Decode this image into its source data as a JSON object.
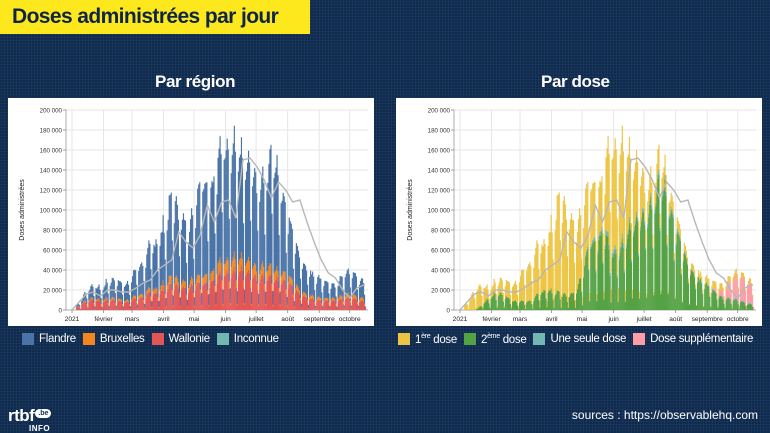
{
  "title": "Doses administrées par jour",
  "footer": {
    "logo_text": "rtbf",
    "logo_badge": ".be",
    "logo_sub": "INFO",
    "sources": "sources : https://observablehq.com"
  },
  "colors": {
    "background": "#102a4c",
    "banner": "#fde81e",
    "flandre": "#4a74a8",
    "bruxelles": "#f5861f",
    "wallonie": "#e45656",
    "inconnue": "#72b7b2",
    "dose1": "#eec543",
    "dose2": "#55a245",
    "une_seule": "#72b7b2",
    "supplementaire": "#ff9da6",
    "avg_line": "#b7b7b7"
  },
  "chart_data": [
    {
      "type": "bar",
      "stacked": true,
      "title": "Par région",
      "xlabel": "",
      "ylabel": "Doses administrées",
      "ylim": [
        0,
        200000
      ],
      "yticks": [
        0,
        20000,
        40000,
        60000,
        80000,
        100000,
        120000,
        140000,
        160000,
        180000,
        200000
      ],
      "ytick_labels": [
        "0",
        "20 000",
        "40 000",
        "60 000",
        "80 000",
        "100 000",
        "120 000",
        "140 000",
        "160 000",
        "180 000",
        "200 000"
      ],
      "x_start": "2021-01-01",
      "x_days": 289,
      "xtick_labels": [
        "2021",
        "février",
        "mars",
        "avril",
        "mai",
        "juin",
        "juillet",
        "août",
        "septembre",
        "octobre"
      ],
      "xtick_days": [
        0,
        31,
        59,
        90,
        120,
        151,
        181,
        212,
        243,
        273
      ],
      "grid": true,
      "legend_position": "bottom",
      "series": [
        {
          "name": "Wallonie",
          "color_key": "wallonie"
        },
        {
          "name": "Bruxelles",
          "color_key": "bruxelles"
        },
        {
          "name": "Flandre",
          "color_key": "flandre"
        },
        {
          "name": "Inconnue",
          "color_key": "inconnue"
        }
      ],
      "legend": [
        "Flandre",
        "Bruxelles",
        "Wallonie",
        "Inconnue"
      ],
      "envelope_weekly_peak_total": [
        0,
        9000,
        23000,
        30000,
        24000,
        34000,
        36000,
        31000,
        32000,
        50000,
        55000,
        76000,
        80000,
        102000,
        135000,
        112000,
        98000,
        107000,
        162000,
        145000,
        152000,
        197000,
        195000,
        184000,
        172000,
        165000,
        145000,
        150000,
        185000,
        160000,
        118000,
        86000,
        62000,
        48000,
        40000,
        36000,
        31000,
        28000,
        42000,
        44000,
        40000,
        30000
      ],
      "envelope_weekly_share_wallonie": [
        0.6,
        0.55,
        0.45,
        0.42,
        0.4,
        0.35,
        0.33,
        0.3,
        0.3,
        0.28,
        0.27,
        0.26,
        0.25,
        0.24,
        0.22,
        0.24,
        0.25,
        0.26,
        0.2,
        0.22,
        0.23,
        0.22,
        0.23,
        0.24,
        0.26,
        0.25,
        0.25,
        0.26,
        0.2,
        0.22,
        0.28,
        0.3,
        0.3,
        0.3,
        0.32,
        0.3,
        0.35,
        0.38,
        0.3,
        0.32,
        0.3,
        0.3
      ],
      "envelope_weekly_share_bruxelles": [
        0.05,
        0.06,
        0.06,
        0.07,
        0.07,
        0.07,
        0.07,
        0.07,
        0.07,
        0.07,
        0.07,
        0.07,
        0.07,
        0.07,
        0.07,
        0.07,
        0.07,
        0.07,
        0.06,
        0.07,
        0.08,
        0.08,
        0.08,
        0.08,
        0.08,
        0.08,
        0.08,
        0.08,
        0.07,
        0.07,
        0.08,
        0.08,
        0.08,
        0.08,
        0.08,
        0.08,
        0.09,
        0.1,
        0.1,
        0.1,
        0.1,
        0.1
      ],
      "avg7_weekly": [
        0,
        8000,
        16000,
        18000,
        14000,
        20000,
        20000,
        18000,
        18000,
        22000,
        27000,
        30000,
        40000,
        45000,
        50000,
        78000,
        68000,
        62000,
        75000,
        105000,
        88000,
        108000,
        110000,
        92000,
        150000,
        152000,
        143000,
        130000,
        112000,
        128000,
        120000,
        108000,
        110000,
        88000,
        68000,
        50000,
        37000,
        32000,
        20000,
        12000,
        22000,
        25000
      ]
    },
    {
      "type": "bar",
      "stacked": true,
      "title": "Par dose",
      "xlabel": "",
      "ylabel": "Doses administrées",
      "ylim": [
        0,
        200000
      ],
      "yticks": [
        0,
        20000,
        40000,
        60000,
        80000,
        100000,
        120000,
        140000,
        160000,
        180000,
        200000
      ],
      "ytick_labels": [
        "0",
        "20 000",
        "40 000",
        "60 000",
        "80 000",
        "100 000",
        "120 000",
        "140 000",
        "160 000",
        "180 000",
        "200 000"
      ],
      "x_start": "2021-01-01",
      "x_days": 289,
      "xtick_labels": [
        "2021",
        "février",
        "mars",
        "avril",
        "mai",
        "juin",
        "juillet",
        "août",
        "septembre",
        "octobre"
      ],
      "xtick_days": [
        0,
        31,
        59,
        90,
        120,
        151,
        181,
        212,
        243,
        273
      ],
      "grid": true,
      "legend_position": "bottom",
      "series": [
        {
          "name": "2ème dose",
          "color_key": "dose2"
        },
        {
          "name": "Une seule dose",
          "color_key": "une_seule"
        },
        {
          "name": "Dose supplémentaire",
          "color_key": "supplementaire"
        },
        {
          "name": "1ère dose",
          "color_key": "dose1"
        }
      ],
      "legend": [
        {
          "main": "1",
          "sup": "ère",
          "rest": " dose"
        },
        {
          "main": "2",
          "sup": "ème",
          "rest": " dose"
        },
        {
          "main": "Une seule dose",
          "sup": "",
          "rest": ""
        },
        {
          "main": "Dose supplémentaire",
          "sup": "",
          "rest": ""
        }
      ],
      "envelope_weekly_share_dose2": [
        0,
        0,
        0,
        0.2,
        0.55,
        0.6,
        0.5,
        0.4,
        0.3,
        0.2,
        0.2,
        0.25,
        0.3,
        0.2,
        0.15,
        0.15,
        0.2,
        0.35,
        0.5,
        0.55,
        0.6,
        0.35,
        0.35,
        0.4,
        0.55,
        0.6,
        0.75,
        0.8,
        0.82,
        0.85,
        0.85,
        0.85,
        0.85,
        0.82,
        0.8,
        0.75,
        0.6,
        0.45,
        0.3,
        0.25,
        0.2,
        0.2
      ],
      "envelope_weekly_share_une_seule": [
        0,
        0,
        0,
        0,
        0,
        0,
        0,
        0,
        0,
        0,
        0,
        0,
        0,
        0,
        0,
        0,
        0,
        0.01,
        0.02,
        0.03,
        0.03,
        0.03,
        0.03,
        0.03,
        0.03,
        0.03,
        0.03,
        0.03,
        0.03,
        0.03,
        0.03,
        0.03,
        0.03,
        0.03,
        0.03,
        0.03,
        0.03,
        0.03,
        0.03,
        0.03,
        0.03,
        0.03
      ],
      "envelope_weekly_share_supplementaire": [
        0,
        0,
        0,
        0,
        0,
        0,
        0,
        0,
        0,
        0,
        0,
        0,
        0,
        0,
        0,
        0,
        0,
        0,
        0,
        0,
        0,
        0,
        0,
        0,
        0,
        0,
        0,
        0,
        0,
        0,
        0,
        0,
        0,
        0,
        0,
        0,
        0.1,
        0.3,
        0.5,
        0.6,
        0.65,
        0.65
      ]
    }
  ]
}
